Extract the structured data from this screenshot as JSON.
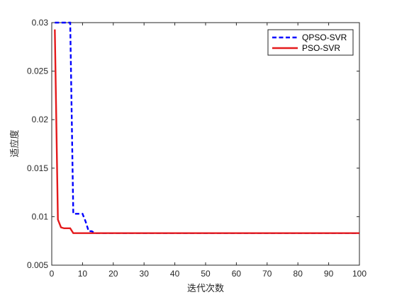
{
  "chart_data": {
    "type": "line",
    "title": "",
    "xlabel": "迭代次数",
    "ylabel": "适应度",
    "xlim": [
      0,
      100
    ],
    "ylim": [
      0.005,
      0.03
    ],
    "x_ticks": [
      0,
      10,
      20,
      30,
      40,
      50,
      60,
      70,
      80,
      90,
      100
    ],
    "x_tick_labels": [
      "0",
      "10",
      "20",
      "30",
      "40",
      "50",
      "60",
      "70",
      "80",
      "90",
      "100"
    ],
    "y_ticks": [
      0.005,
      0.01,
      0.015,
      0.02,
      0.025,
      0.03
    ],
    "y_tick_labels": [
      "0.005",
      "0.01",
      "0.015",
      "0.02",
      "0.025",
      "0.03"
    ],
    "grid": false,
    "legend_position": "top-right",
    "series": [
      {
        "name": "QPSO-SVR",
        "color": "#0000ff",
        "line_style": "dashed",
        "x": [
          1,
          2,
          6,
          7,
          10,
          11,
          12,
          13,
          14,
          100
        ],
        "y": [
          0.03,
          0.03,
          0.03,
          0.0103,
          0.0103,
          0.0095,
          0.0085,
          0.0085,
          0.0083,
          0.0083
        ]
      },
      {
        "name": "PSO-SVR",
        "color": "#e41a1c",
        "line_style": "solid",
        "x": [
          1,
          2,
          3,
          4,
          6,
          7,
          8,
          100
        ],
        "y": [
          0.0293,
          0.0097,
          0.0089,
          0.0088,
          0.0088,
          0.0083,
          0.0083,
          0.0083
        ]
      }
    ]
  }
}
